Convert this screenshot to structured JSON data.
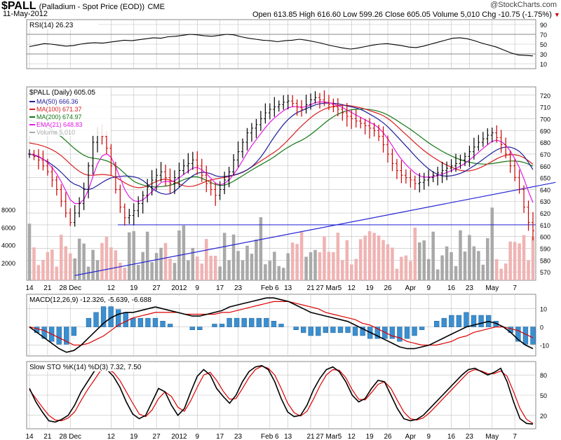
{
  "header": {
    "symbol": "$PALL",
    "description": "(Palladium - Spot Price (EOD))",
    "exchange": "CME",
    "date": "11-May-2012",
    "quote_label": "Open 613.85  High 616.60  Low 599.26  Close 605.05  Volume 5,010  Chg -10.75 (-1.75%)",
    "arrow": "▼",
    "watermark": "@StockCharts.com"
  },
  "colors": {
    "ma50": "#1e1e99",
    "ma100": "#d81f1f",
    "ma200": "#137613",
    "ema21": "#e619e6",
    "volume_up": "#a9a9a9",
    "volume_down": "#f0b3b3",
    "macd_hist": "#3b8fd0",
    "trendline": "#2424d6",
    "grid": "#bfbfbf"
  },
  "chart_data": [
    {
      "type": "line",
      "panel": "rsi",
      "label": "RSI(14) 26.23",
      "yticks": [
        10,
        30,
        50,
        70,
        90
      ],
      "ylim": [
        0,
        100
      ],
      "levels": [
        30,
        70
      ],
      "series": [
        {
          "name": "RSI(14)",
          "values": [
            45,
            48,
            51,
            50,
            48,
            46,
            47,
            50,
            52,
            53,
            52,
            54,
            56,
            58,
            57,
            59,
            61,
            63,
            62,
            65,
            66,
            68,
            70,
            69,
            67,
            66,
            68,
            70,
            69,
            65,
            62,
            60,
            58,
            57,
            55,
            57,
            58,
            60,
            58,
            55,
            52,
            48,
            45,
            42,
            40,
            42,
            45,
            48,
            50,
            51,
            49,
            47,
            44,
            43,
            46,
            50,
            54,
            58,
            62,
            63,
            61,
            57,
            52,
            48,
            44,
            38,
            32,
            28,
            27,
            26
          ]
        }
      ]
    },
    {
      "type": "ohlc",
      "panel": "price",
      "label": "$PALL (Daily) 605.05",
      "legend": [
        {
          "name": "MA(50) 666.36",
          "color_key": "ma50"
        },
        {
          "name": "MA(100) 671.37",
          "color_key": "ma100"
        },
        {
          "name": "MA(200) 674.97",
          "color_key": "ma200"
        },
        {
          "name": "EMA(21) 648.83",
          "color_key": "ema21"
        },
        {
          "name": "Volume 5,010",
          "color_key": "volume_up"
        }
      ],
      "yticks": [
        570,
        580,
        590,
        600,
        610,
        620,
        630,
        640,
        650,
        660,
        670,
        680,
        690,
        700,
        710,
        720
      ],
      "ylim": [
        563,
        727
      ],
      "volume_ticks": [
        "2000",
        "4000",
        "6000",
        "8000"
      ],
      "volume_max": 10000,
      "xtick_labels": [
        "14",
        "21",
        "28 Dec",
        "12",
        "19",
        "27",
        "2012",
        "9",
        "17",
        "23",
        "Feb 6",
        "13",
        "21",
        "27 Mar5",
        "12",
        "19",
        "26",
        "Apr",
        "9",
        "16",
        "23",
        "May",
        "7"
      ],
      "xtick_index": [
        0,
        4,
        9,
        18,
        23,
        28,
        33,
        37,
        42,
        46,
        53,
        57,
        62,
        66,
        71,
        75,
        79,
        84,
        88,
        93,
        97,
        102,
        107
      ],
      "hlines": [
        610
      ],
      "trendlines": [
        {
          "from": [
            10,
            567
          ],
          "to": [
            116,
            646
          ]
        }
      ],
      "close": [
        670,
        668,
        665,
        660,
        655,
        648,
        640,
        630,
        620,
        612,
        620,
        628,
        640,
        660,
        680,
        688,
        685,
        675,
        660,
        640,
        625,
        616,
        618,
        622,
        628,
        635,
        642,
        648,
        652,
        655,
        650,
        645,
        650,
        656,
        660,
        662,
        665,
        660,
        652,
        645,
        640,
        635,
        640,
        648,
        655,
        665,
        672,
        680,
        688,
        692,
        695,
        700,
        705,
        708,
        710,
        712,
        714,
        715,
        713,
        710,
        708,
        712,
        716,
        718,
        716,
        714,
        712,
        710,
        708,
        705,
        702,
        700,
        698,
        696,
        694,
        692,
        690,
        685,
        678,
        670,
        662,
        656,
        652,
        650,
        648,
        645,
        646,
        648,
        650,
        652,
        654,
        656,
        658,
        660,
        662,
        665,
        668,
        672,
        676,
        680,
        683,
        686,
        688,
        684,
        678,
        670,
        660,
        650,
        640,
        625,
        612,
        605
      ]
    },
    {
      "type": "line",
      "panel": "macd",
      "label": "MACD(12,26,9) -12.326, -5.639, -6.688",
      "yticks": [
        10,
        0,
        -10
      ],
      "ylim": [
        -16,
        18
      ],
      "series": [
        {
          "name": "MACD",
          "color": "#000000",
          "values": [
            0,
            -3,
            -6,
            -9,
            -12,
            -14,
            -13,
            -10,
            -6,
            -2,
            2,
            5,
            7,
            8,
            8,
            9,
            10,
            11,
            10,
            9,
            8,
            7,
            6,
            6,
            7,
            8,
            9,
            11,
            12,
            13,
            14,
            15,
            16,
            16,
            15,
            14,
            12,
            10,
            8,
            7,
            6,
            5,
            4,
            3,
            1,
            -1,
            -3,
            -5,
            -7,
            -9,
            -11,
            -12,
            -12,
            -11,
            -10,
            -8,
            -6,
            -4,
            -2,
            0,
            1,
            2,
            3,
            2,
            0,
            -3,
            -7,
            -10,
            -12
          ]
        },
        {
          "name": "Signal",
          "color": "#dd0000",
          "values": [
            0,
            -1,
            -2,
            -4,
            -6,
            -8,
            -10,
            -10,
            -9,
            -7,
            -5,
            -2,
            1,
            3,
            5,
            6,
            7,
            8,
            8,
            8,
            8,
            7,
            7,
            7,
            7,
            7,
            8,
            8,
            9,
            10,
            11,
            12,
            13,
            14,
            14,
            14,
            13,
            12,
            11,
            10,
            8,
            7,
            6,
            5,
            4,
            2,
            1,
            -1,
            -3,
            -5,
            -6,
            -8,
            -9,
            -10,
            -10,
            -10,
            -9,
            -8,
            -6,
            -5,
            -3,
            -2,
            -1,
            0,
            0,
            -1,
            -2,
            -4,
            -6
          ]
        }
      ]
    },
    {
      "type": "line",
      "panel": "sto",
      "label": "Slow STO %K(14) %D(3) 7.32, 7.50",
      "yticks": [
        80,
        50,
        20
      ],
      "ylim": [
        0,
        100
      ],
      "series": [
        {
          "name": "%K",
          "color": "#000000",
          "values": [
            60,
            40,
            25,
            12,
            10,
            14,
            20,
            35,
            55,
            70,
            85,
            92,
            88,
            78,
            62,
            40,
            22,
            15,
            20,
            40,
            60,
            55,
            35,
            20,
            30,
            55,
            78,
            88,
            80,
            60,
            48,
            38,
            50,
            70,
            85,
            92,
            94,
            88,
            70,
            45,
            25,
            18,
            20,
            35,
            58,
            75,
            88,
            92,
            85,
            70,
            50,
            40,
            45,
            60,
            72,
            70,
            50,
            30,
            15,
            12,
            14,
            20,
            30,
            40,
            50,
            60,
            70,
            80,
            88,
            90,
            85,
            80,
            84,
            90,
            70,
            40,
            15,
            8,
            7
          ]
        },
        {
          "name": "%D",
          "color": "#dd0000",
          "values": [
            58,
            45,
            32,
            20,
            13,
            12,
            16,
            25,
            42,
            58,
            72,
            86,
            88,
            84,
            72,
            55,
            38,
            22,
            18,
            28,
            45,
            55,
            48,
            32,
            26,
            42,
            62,
            80,
            84,
            72,
            56,
            44,
            45,
            60,
            76,
            88,
            93,
            90,
            80,
            60,
            38,
            24,
            19,
            26,
            44,
            64,
            80,
            88,
            87,
            76,
            58,
            44,
            43,
            54,
            66,
            70,
            60,
            42,
            25,
            15,
            13,
            16,
            24,
            34,
            44,
            54,
            64,
            74,
            84,
            88,
            86,
            82,
            82,
            86,
            78,
            55,
            30,
            14,
            8
          ]
        }
      ]
    }
  ]
}
